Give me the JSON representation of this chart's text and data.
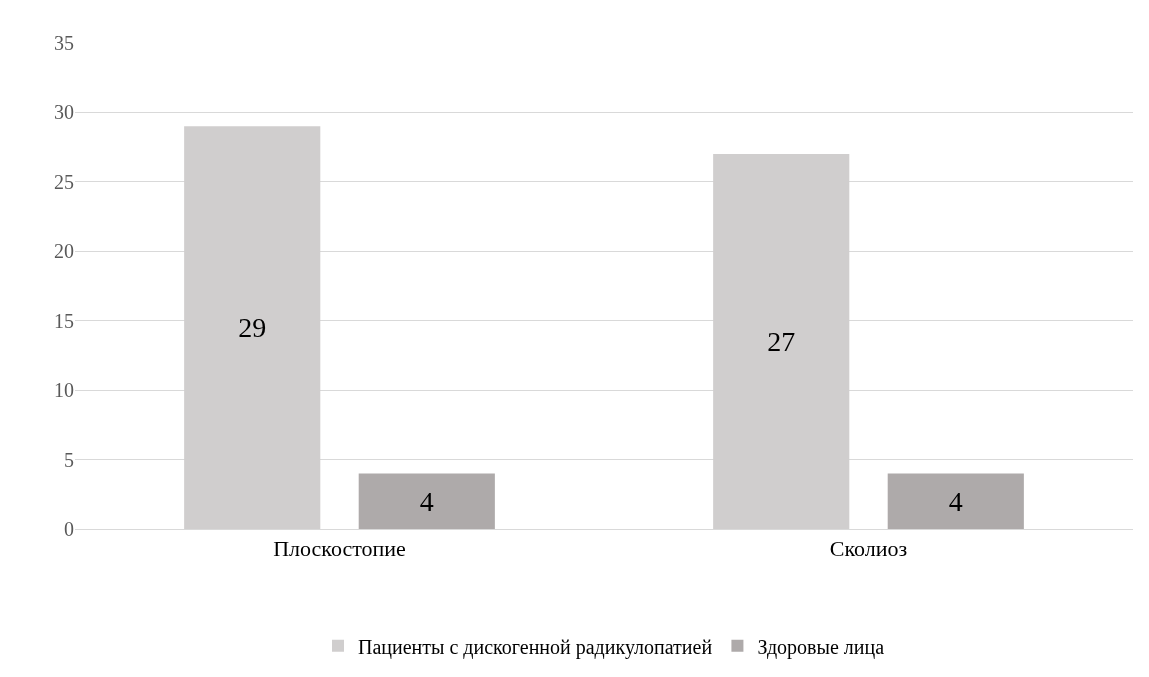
{
  "chart_data": {
    "type": "bar",
    "categories": [
      "Плоскостопие",
      "Сколиоз"
    ],
    "series": [
      {
        "name": "Пациенты с дискогенной радикулопатией",
        "color": "#d0cece",
        "values": [
          29,
          27
        ]
      },
      {
        "name": "Здоровые лица",
        "color": "#aeaaaa",
        "values": [
          4,
          4
        ]
      }
    ],
    "ylim": [
      0,
      35
    ],
    "yticks": [
      0,
      5,
      10,
      15,
      20,
      25,
      30,
      35
    ],
    "grid": "y",
    "legend": "bottom",
    "data_labels": true
  }
}
